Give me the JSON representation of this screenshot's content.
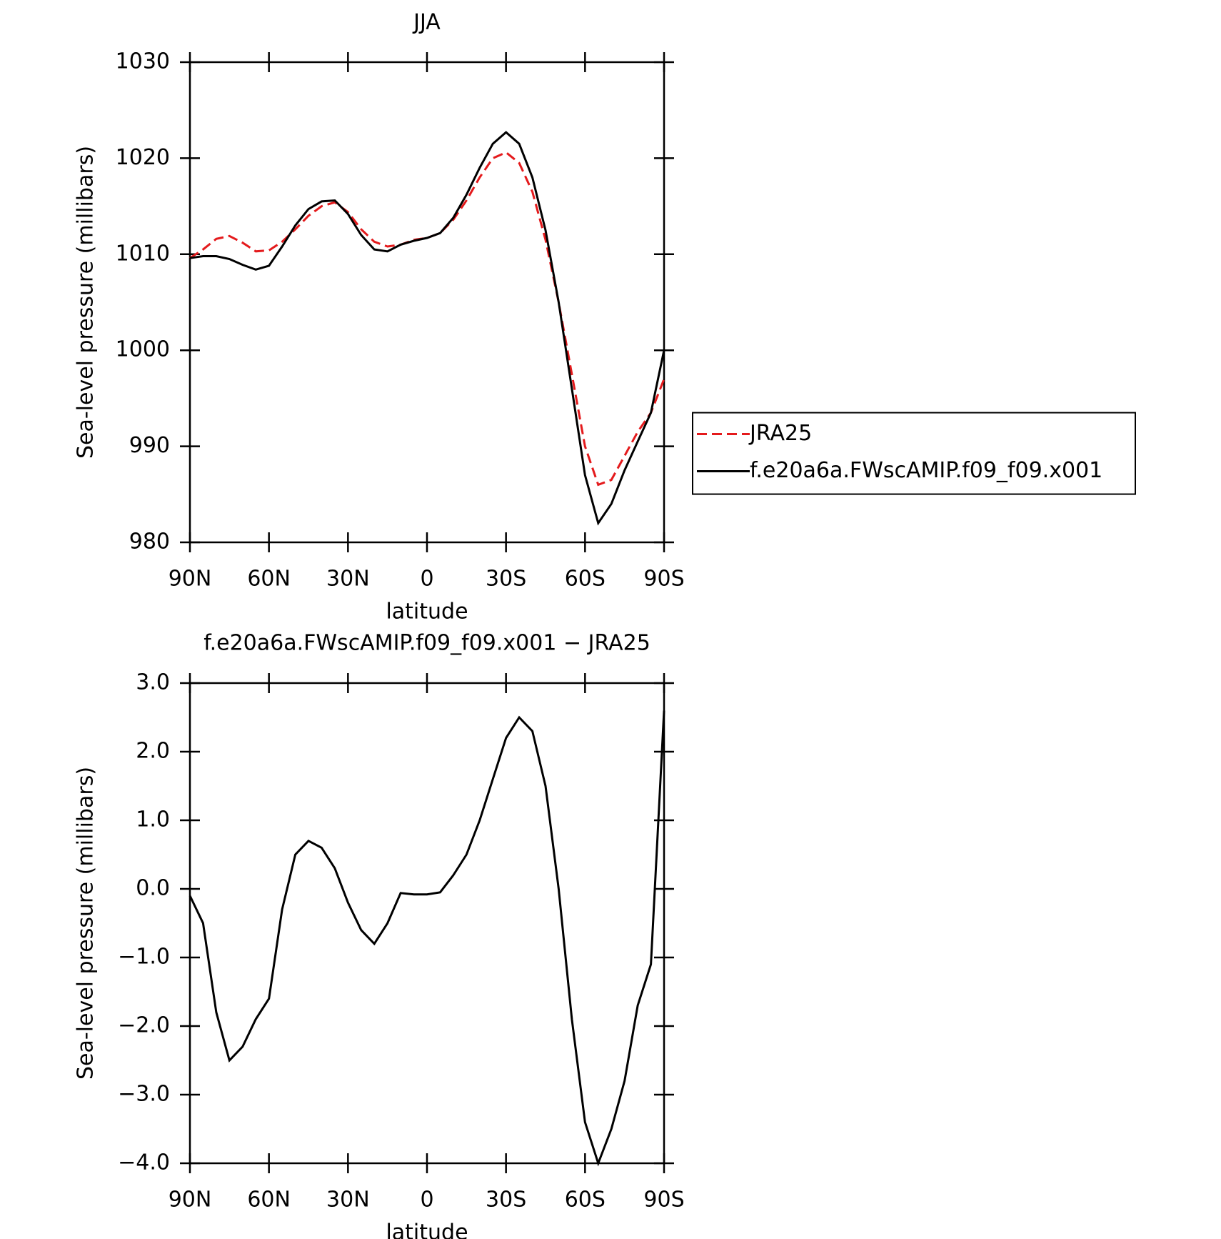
{
  "chart_data": [
    {
      "type": "line",
      "title": "JJA",
      "xlabel": "latitude",
      "ylabel": "Sea-level pressure (millibars)",
      "x": [
        90,
        85,
        80,
        75,
        70,
        65,
        60,
        55,
        50,
        45,
        40,
        35,
        30,
        25,
        20,
        15,
        10,
        5,
        0,
        -5,
        -10,
        -15,
        -20,
        -25,
        -30,
        -35,
        -40,
        -45,
        -50,
        -55,
        -60,
        -65,
        -70,
        -75,
        -80,
        -85,
        -90
      ],
      "series": [
        {
          "name": "JRA25",
          "color": "#e41a1c",
          "dash": true,
          "values": [
            1009.6,
            1010.5,
            1011.6,
            1011.9,
            1011.2,
            1010.3,
            1010.4,
            1011.3,
            1012.6,
            1014.0,
            1015.0,
            1015.4,
            1014.4,
            1012.6,
            1011.3,
            1010.8,
            1011.0,
            1011.5,
            1011.7,
            1012.2,
            1013.6,
            1015.6,
            1018.0,
            1020.0,
            1020.6,
            1019.5,
            1016.5,
            1011.5,
            1005.0,
            997.5,
            990.0,
            986.0,
            986.5,
            989.0,
            991.5,
            993.5,
            997.0
          ]
        },
        {
          "name": "f.e20a6a.FWscAMIP.f09_f09.x001",
          "color": "#000000",
          "dash": false,
          "values": [
            1009.6,
            1009.8,
            1009.8,
            1009.5,
            1008.9,
            1008.4,
            1008.8,
            1010.8,
            1013.0,
            1014.7,
            1015.5,
            1015.6,
            1014.2,
            1012.0,
            1010.5,
            1010.3,
            1011.0,
            1011.4,
            1011.7,
            1012.2,
            1013.8,
            1016.2,
            1019.0,
            1021.5,
            1022.7,
            1021.5,
            1018.0,
            1012.5,
            1005.0,
            996.0,
            987.0,
            982.0,
            984.0,
            987.5,
            990.5,
            993.5,
            1000.0
          ]
        }
      ],
      "xlim": [
        90,
        -90
      ],
      "xticks": [
        {
          "value": 90,
          "label": "90N"
        },
        {
          "value": 60,
          "label": "60N"
        },
        {
          "value": 30,
          "label": "30N"
        },
        0,
        {
          "value": -30,
          "label": "30S"
        },
        {
          "value": -60,
          "label": "60S"
        },
        {
          "value": -90,
          "label": "90S"
        }
      ],
      "ylim": [
        980,
        1030
      ],
      "yticks": [
        980,
        990,
        1000,
        1010,
        1020,
        1030
      ],
      "legend": "right"
    },
    {
      "type": "line",
      "title": "f.e20a6a.FWscAMIP.f09_f09.x001 − JRA25",
      "xlabel": "latitude",
      "ylabel": "Sea-level pressure (millibars)",
      "x": [
        90,
        85,
        80,
        75,
        70,
        65,
        60,
        55,
        50,
        45,
        40,
        35,
        30,
        25,
        20,
        15,
        10,
        5,
        0,
        -5,
        -10,
        -15,
        -20,
        -25,
        -30,
        -35,
        -40,
        -45,
        -50,
        -55,
        -60,
        -65,
        -70,
        -75,
        -80,
        -85,
        -90
      ],
      "series": [
        {
          "color": "#000000",
          "dash": false,
          "values": [
            -0.1,
            -0.5,
            -1.8,
            -2.5,
            -2.3,
            -1.9,
            -1.6,
            -0.3,
            0.5,
            0.7,
            0.6,
            0.3,
            -0.2,
            -0.6,
            -0.8,
            -0.5,
            -0.06,
            -0.08,
            -0.08,
            -0.05,
            0.2,
            0.5,
            1.0,
            1.6,
            2.2,
            2.5,
            2.3,
            1.5,
            0.0,
            -1.9,
            -3.4,
            -4.0,
            -3.5,
            -2.8,
            -1.7,
            -1.1,
            2.6
          ]
        }
      ],
      "xlim": [
        90,
        -90
      ],
      "xticks": [
        {
          "value": 90,
          "label": "90N"
        },
        {
          "value": 60,
          "label": "60N"
        },
        {
          "value": 30,
          "label": "30N"
        },
        0,
        {
          "value": -30,
          "label": "30S"
        },
        {
          "value": -60,
          "label": "60S"
        },
        {
          "value": -90,
          "label": "90S"
        }
      ],
      "ylim": [
        -4.0,
        3.0
      ],
      "yticks": [
        {
          "value": -4,
          "label": "−4.0"
        },
        {
          "value": -3,
          "label": "−3.0"
        },
        {
          "value": -2,
          "label": "−2.0"
        },
        {
          "value": -1,
          "label": "−1.0"
        },
        {
          "value": 0,
          "label": "0.0"
        },
        {
          "value": 1,
          "label": "1.0"
        },
        {
          "value": 2,
          "label": "2.0"
        },
        {
          "value": 3,
          "label": "3.0"
        }
      ]
    }
  ]
}
